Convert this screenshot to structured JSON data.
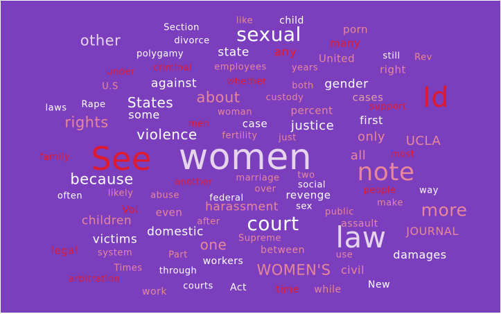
{
  "background_color": "#7b3fbe",
  "palette": {
    "white": "#ffffff",
    "light": "#e6d3ec",
    "pink": "#e8879a",
    "salmon": "#e0a0a4",
    "red": "#e01a2e",
    "mauve": "#c88bb8"
  },
  "words": [
    {
      "text": "women",
      "color": "#e6d3ec",
      "weight": "heavy"
    },
    {
      "text": "See",
      "color": "#e01a2e",
      "weight": "heavy"
    },
    {
      "text": "note",
      "color": "#e8879a",
      "weight": "heavy"
    },
    {
      "text": "law",
      "color": "#e6d3ec",
      "weight": "heavy"
    },
    {
      "text": "Id",
      "color": "#e01a2e",
      "weight": "heavy"
    },
    {
      "text": "court",
      "color": "#ffffff",
      "weight": "heavy"
    },
    {
      "text": "sexual",
      "color": "#ffffff",
      "weight": "heavy"
    },
    {
      "text": "more",
      "color": "#e8879a",
      "weight": "large"
    },
    {
      "text": "WOMEN'S",
      "color": "#e8879a",
      "weight": "large"
    },
    {
      "text": "other",
      "color": "#e6d3ec",
      "weight": "large"
    },
    {
      "text": "because",
      "color": "#ffffff",
      "weight": "large"
    },
    {
      "text": "rights",
      "color": "#e8879a",
      "weight": "large"
    },
    {
      "text": "about",
      "color": "#e8879a",
      "weight": "large"
    },
    {
      "text": "States",
      "color": "#ffffff",
      "weight": "large"
    },
    {
      "text": "violence",
      "color": "#ffffff",
      "weight": "large"
    },
    {
      "text": "one",
      "color": "#e8879a",
      "weight": "large"
    },
    {
      "text": "justice",
      "color": "#ffffff",
      "weight": "large"
    },
    {
      "text": "UCLA",
      "color": "#e8879a",
      "weight": "medium"
    },
    {
      "text": "only",
      "color": "#e8879a",
      "weight": "medium"
    },
    {
      "text": "all",
      "color": "#e8879a",
      "weight": "medium"
    },
    {
      "text": "gender",
      "color": "#ffffff",
      "weight": "medium"
    },
    {
      "text": "any",
      "color": "#e01a2e",
      "weight": "medium"
    },
    {
      "text": "state",
      "color": "#ffffff",
      "weight": "medium"
    },
    {
      "text": "against",
      "color": "#ffffff",
      "weight": "medium"
    },
    {
      "text": "harassment",
      "color": "#e8879a",
      "weight": "medium"
    },
    {
      "text": "domestic",
      "color": "#ffffff",
      "weight": "medium"
    },
    {
      "text": "children",
      "color": "#e8879a",
      "weight": "medium"
    },
    {
      "text": "victims",
      "color": "#ffffff",
      "weight": "medium"
    },
    {
      "text": "civil",
      "color": "#e8879a",
      "weight": "medium"
    },
    {
      "text": "damages",
      "color": "#ffffff",
      "weight": "medium"
    },
    {
      "text": "JOURNAL",
      "color": "#e8879a",
      "weight": "medium"
    },
    {
      "text": "first",
      "color": "#ffffff",
      "weight": "medium"
    },
    {
      "text": "some",
      "color": "#ffffff",
      "weight": "medium"
    },
    {
      "text": "cases",
      "color": "#e0a0a4",
      "weight": "medium"
    },
    {
      "text": "case",
      "color": "#ffffff",
      "weight": "medium"
    },
    {
      "text": "percent",
      "color": "#e8879a",
      "weight": "medium"
    },
    {
      "text": "right",
      "color": "#e8879a",
      "weight": "medium"
    },
    {
      "text": "United",
      "color": "#e8879a",
      "weight": "medium"
    },
    {
      "text": "many",
      "color": "#e01a2e",
      "weight": "medium"
    },
    {
      "text": "porn",
      "color": "#e8879a",
      "weight": "medium"
    },
    {
      "text": "revenge",
      "color": "#ffffff",
      "weight": "medium"
    },
    {
      "text": "even",
      "color": "#e8879a",
      "weight": "medium"
    },
    {
      "text": "Vol",
      "color": "#e01a2e",
      "weight": "medium"
    },
    {
      "text": "legal",
      "color": "#e01a2e",
      "weight": "medium"
    },
    {
      "text": "workers",
      "color": "#ffffff",
      "weight": "medium"
    },
    {
      "text": "between",
      "color": "#e8879a",
      "weight": "medium"
    },
    {
      "text": "assault",
      "color": "#e8879a",
      "weight": "medium"
    },
    {
      "text": "time",
      "color": "#e01a2e",
      "weight": "medium"
    },
    {
      "text": "while",
      "color": "#e8879a",
      "weight": "medium"
    },
    {
      "text": "work",
      "color": "#e8879a",
      "weight": "medium"
    },
    {
      "text": "Act",
      "color": "#ffffff",
      "weight": "medium"
    },
    {
      "text": "New",
      "color": "#ffffff",
      "weight": "small"
    },
    {
      "text": "courts",
      "color": "#ffffff",
      "weight": "small"
    },
    {
      "text": "through",
      "color": "#ffffff",
      "weight": "small"
    },
    {
      "text": "Times",
      "color": "#e8879a",
      "weight": "small"
    },
    {
      "text": "arbitration",
      "color": "#e01a2e",
      "weight": "small"
    },
    {
      "text": "system",
      "color": "#e8879a",
      "weight": "small"
    },
    {
      "text": "Part",
      "color": "#e8879a",
      "weight": "small"
    },
    {
      "text": "Supreme",
      "color": "#e8879a",
      "weight": "small"
    },
    {
      "text": "after",
      "color": "#e8879a",
      "weight": "small"
    },
    {
      "text": "federal",
      "color": "#ffffff",
      "weight": "small"
    },
    {
      "text": "use",
      "color": "#e8879a",
      "weight": "small"
    },
    {
      "text": "public",
      "color": "#e8879a",
      "weight": "small"
    },
    {
      "text": "make",
      "color": "#e8879a",
      "weight": "small"
    },
    {
      "text": "people",
      "color": "#e01a2e",
      "weight": "small"
    },
    {
      "text": "way",
      "color": "#ffffff",
      "weight": "small"
    },
    {
      "text": "sex",
      "color": "#ffffff",
      "weight": "small"
    },
    {
      "text": "social",
      "color": "#ffffff",
      "weight": "small"
    },
    {
      "text": "two",
      "color": "#e8879a",
      "weight": "small"
    },
    {
      "text": "over",
      "color": "#e8879a",
      "weight": "small"
    },
    {
      "text": "marriage",
      "color": "#e8879a",
      "weight": "small"
    },
    {
      "text": "another",
      "color": "#e01a2e",
      "weight": "small"
    },
    {
      "text": "abuse",
      "color": "#e8879a",
      "weight": "small"
    },
    {
      "text": "likely",
      "color": "#e8879a",
      "weight": "small"
    },
    {
      "text": "often",
      "color": "#ffffff",
      "weight": "small"
    },
    {
      "text": "family",
      "color": "#e01a2e",
      "weight": "small"
    },
    {
      "text": "most",
      "color": "#e01a2e",
      "weight": "small"
    },
    {
      "text": "just",
      "color": "#e8879a",
      "weight": "small"
    },
    {
      "text": "fertility",
      "color": "#e8879a",
      "weight": "small"
    },
    {
      "text": "men",
      "color": "#e01a2e",
      "weight": "small"
    },
    {
      "text": "woman",
      "color": "#e8879a",
      "weight": "small"
    },
    {
      "text": "laws",
      "color": "#ffffff",
      "weight": "small"
    },
    {
      "text": "Rape",
      "color": "#ffffff",
      "weight": "small"
    },
    {
      "text": "U.S",
      "color": "#e8879a",
      "weight": "small"
    },
    {
      "text": "under",
      "color": "#e01a2e",
      "weight": "small"
    },
    {
      "text": "criminal",
      "color": "#e01a2e",
      "weight": "small"
    },
    {
      "text": "employees",
      "color": "#e8879a",
      "weight": "small"
    },
    {
      "text": "years",
      "color": "#e8879a",
      "weight": "small"
    },
    {
      "text": "whether",
      "color": "#e01a2e",
      "weight": "small"
    },
    {
      "text": "both",
      "color": "#e8879a",
      "weight": "small"
    },
    {
      "text": "custody",
      "color": "#e8879a",
      "weight": "small"
    },
    {
      "text": "support",
      "color": "#e01a2e",
      "weight": "small"
    },
    {
      "text": "polygamy",
      "color": "#ffffff",
      "weight": "small"
    },
    {
      "text": "divorce",
      "color": "#ffffff",
      "weight": "small"
    },
    {
      "text": "Section",
      "color": "#ffffff",
      "weight": "small"
    },
    {
      "text": "like",
      "color": "#e8879a",
      "weight": "small"
    },
    {
      "text": "child",
      "color": "#ffffff",
      "weight": "small"
    },
    {
      "text": "still",
      "color": "#ffffff",
      "weight": "small"
    },
    {
      "text": "Rev",
      "color": "#e8879a",
      "weight": "small"
    }
  ]
}
